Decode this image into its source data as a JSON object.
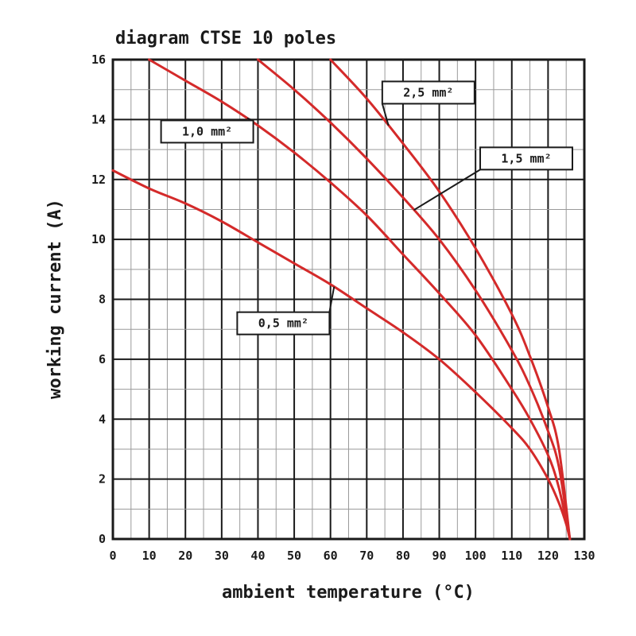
{
  "chart_data": {
    "type": "line",
    "title": "diagram CTSE 10 poles",
    "xlabel": "ambient temperature (°C)",
    "ylabel": "working current (A)",
    "xlim": [
      0,
      130
    ],
    "ylim": [
      0,
      16
    ],
    "x_ticks": [
      "0",
      "10",
      "20",
      "30",
      "40",
      "50",
      "60",
      "70",
      "80",
      "90",
      "100",
      "110",
      "120",
      "130"
    ],
    "y_ticks": [
      "0",
      "2",
      "4",
      "6",
      "8",
      "10",
      "12",
      "14",
      "16"
    ],
    "grid": true,
    "series": [
      {
        "name": "0,5 mm²",
        "x": [
          0,
          10,
          20,
          30,
          40,
          50,
          60,
          70,
          80,
          90,
          100,
          110,
          115,
          120,
          123,
          125,
          126
        ],
        "y": [
          12.3,
          11.7,
          11.2,
          10.6,
          9.9,
          9.2,
          8.5,
          7.7,
          6.9,
          6.0,
          4.9,
          3.7,
          3.0,
          2.0,
          1.2,
          0.5,
          0
        ]
      },
      {
        "name": "1,0 mm²",
        "x": [
          10,
          20,
          30,
          40,
          50,
          60,
          70,
          80,
          90,
          100,
          110,
          115,
          120,
          123,
          126
        ],
        "y": [
          16.0,
          15.3,
          14.6,
          13.8,
          12.9,
          11.9,
          10.8,
          9.5,
          8.2,
          6.8,
          5.0,
          4.0,
          2.8,
          1.7,
          0
        ]
      },
      {
        "name": "1,5 mm²",
        "x": [
          40,
          50,
          60,
          70,
          80,
          90,
          100,
          110,
          115,
          120,
          123,
          126
        ],
        "y": [
          16.0,
          15.0,
          13.9,
          12.7,
          11.4,
          10.0,
          8.3,
          6.3,
          5.1,
          3.6,
          2.4,
          0
        ]
      },
      {
        "name": "2,5 mm²",
        "x": [
          60,
          70,
          80,
          90,
          100,
          110,
          115,
          120,
          123,
          126
        ],
        "y": [
          16.0,
          14.7,
          13.2,
          11.6,
          9.7,
          7.5,
          6.1,
          4.4,
          3.0,
          0
        ]
      }
    ],
    "annotations": [
      {
        "text": "2,5 mm²",
        "series": "2,5 mm²"
      },
      {
        "text": "1,0 mm²",
        "series": "1,0 mm²"
      },
      {
        "text": "1,5 mm²",
        "series": "1,5 mm²"
      },
      {
        "text": "0,5 mm²",
        "series": "0,5 mm²"
      }
    ],
    "colors": {
      "curve": "#d42a2a",
      "grid_major": "#1a1a1a",
      "grid_minor": "#9a9a9a",
      "label_border": "#1a1a1a",
      "leader": "#1a1a1a"
    }
  }
}
